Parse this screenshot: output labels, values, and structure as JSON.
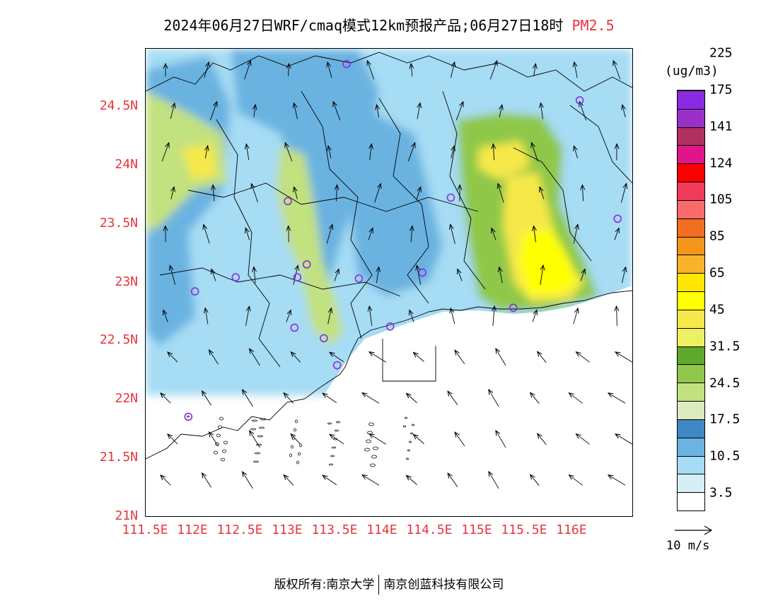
{
  "title": {
    "main": "2024年06月27日WRF/cmaq模式12km预报产品;06月27日18时",
    "species": "PM2.5"
  },
  "map": {
    "lat_labels": [
      "24.5N",
      "24N",
      "23.5N",
      "23N",
      "22.5N",
      "22N",
      "21.5N",
      "21N"
    ],
    "lon_labels": [
      "111.5E",
      "112E",
      "112.5E",
      "113E",
      "113.5E",
      "114E",
      "114.5E",
      "115E",
      "115.5E",
      "116E"
    ],
    "extent": {
      "lon_min": 111.5,
      "lon_max": 116.65,
      "lat_min": 21.0,
      "lat_max": 25.0
    },
    "station_marker_color": "#8a2be2",
    "stations": [
      {
        "lon": 113.62,
        "lat": 24.87
      },
      {
        "lon": 116.08,
        "lat": 24.56
      },
      {
        "lon": 113.0,
        "lat": 23.7
      },
      {
        "lon": 114.72,
        "lat": 23.73
      },
      {
        "lon": 116.48,
        "lat": 23.55
      },
      {
        "lon": 113.2,
        "lat": 23.16
      },
      {
        "lon": 112.45,
        "lat": 23.05
      },
      {
        "lon": 113.1,
        "lat": 23.05
      },
      {
        "lon": 113.75,
        "lat": 23.04
      },
      {
        "lon": 114.42,
        "lat": 23.09
      },
      {
        "lon": 112.02,
        "lat": 22.93
      },
      {
        "lon": 115.38,
        "lat": 22.79
      },
      {
        "lon": 113.07,
        "lat": 22.62
      },
      {
        "lon": 113.38,
        "lat": 22.53
      },
      {
        "lon": 114.08,
        "lat": 22.63
      },
      {
        "lon": 113.52,
        "lat": 22.3
      },
      {
        "lon": 111.95,
        "lat": 21.86
      }
    ]
  },
  "legend": {
    "unit": "(ug/m3)",
    "colors": [
      "#ffffff",
      "#d6eef8",
      "#a6dcf4",
      "#6bb3e1",
      "#3f88c4",
      "#dceac0",
      "#c2e17f",
      "#8fc84a",
      "#5fa82c",
      "#eef063",
      "#f6e84a",
      "#ffff00",
      "#ffe600",
      "#f7b32b",
      "#f5951a",
      "#f26e22",
      "#f76b6b",
      "#f23a5a",
      "#ff0000",
      "#e0158a",
      "#b03060",
      "#9b30c8",
      "#8a2be2"
    ],
    "labels": [
      "3.5",
      "10.5",
      "17.5",
      "24.5",
      "31.5",
      "45",
      "65",
      "85",
      "105",
      "124",
      "141",
      "175",
      "225"
    ]
  },
  "wind_reference": {
    "label": "10 m/s"
  },
  "footer": {
    "left": "版权所有:南京大学",
    "right": "南京创蓝科技有限公司"
  }
}
